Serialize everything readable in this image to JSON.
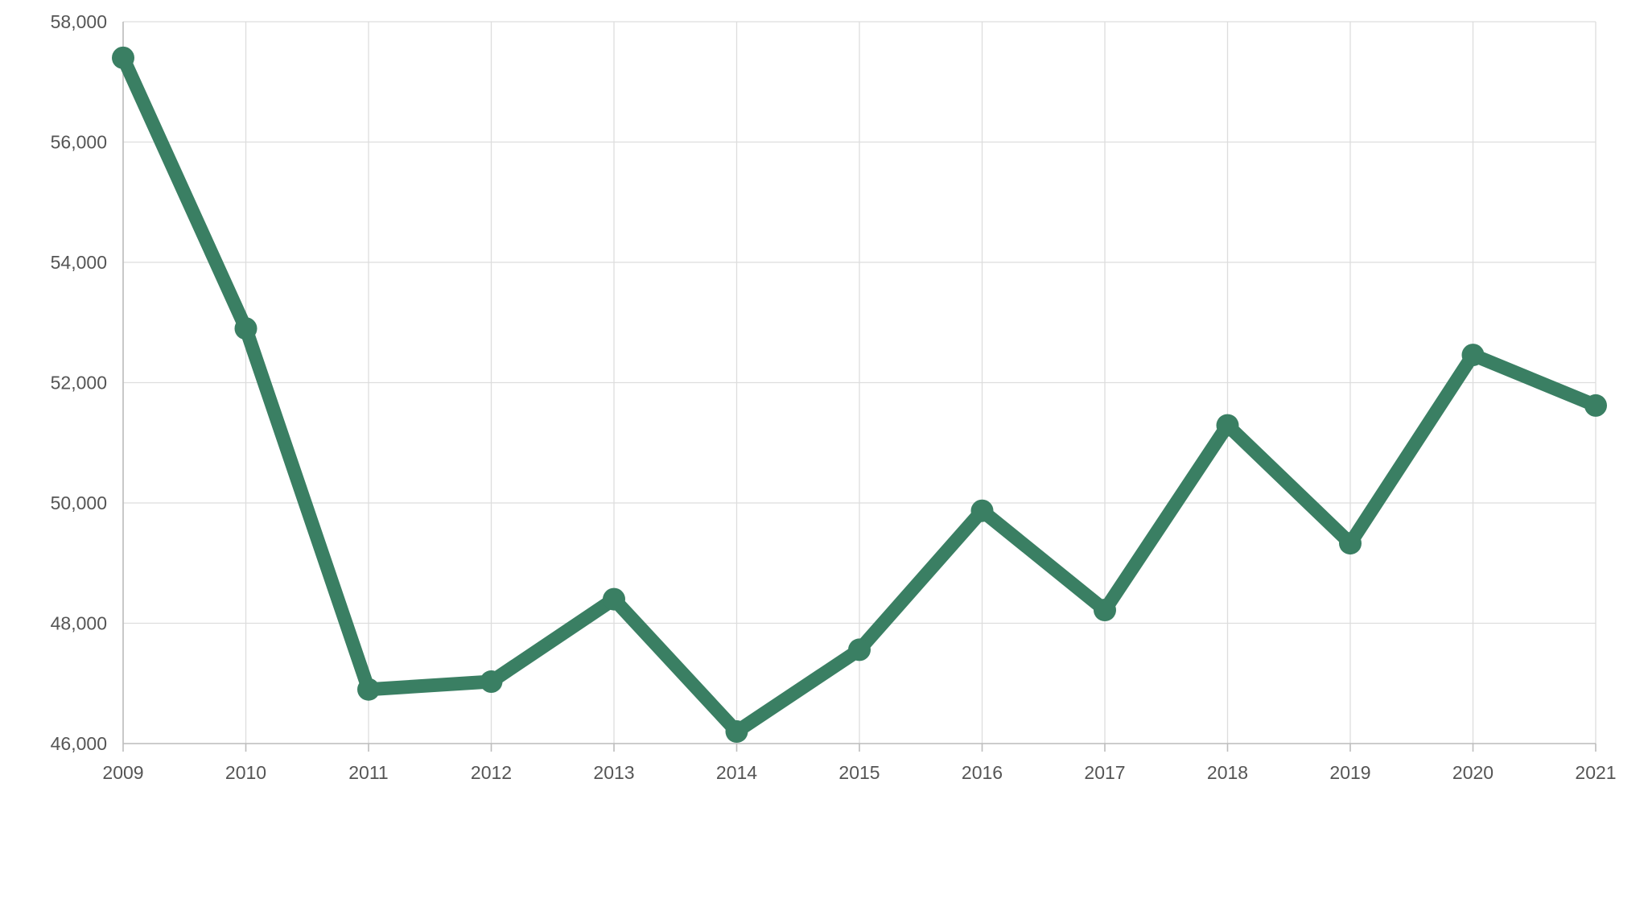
{
  "chart_data": {
    "type": "line",
    "title": "",
    "xlabel": "",
    "ylabel": "",
    "categories": [
      "2009",
      "2010",
      "2011",
      "2012",
      "2013",
      "2014",
      "2015",
      "2016",
      "2017",
      "2018",
      "2019",
      "2020",
      "2021"
    ],
    "series": [
      {
        "values": [
          57400,
          52900,
          46900,
          47030,
          48400,
          46200,
          47560,
          49870,
          48220,
          51290,
          49330,
          52460,
          51620
        ]
      }
    ],
    "ylim": [
      46000,
      58000
    ],
    "yticks": [
      "46,000",
      "48,000",
      "50,000",
      "52,000",
      "54,000",
      "56,000",
      "58,000"
    ],
    "ytick_values": [
      46000,
      48000,
      50000,
      52000,
      54000,
      56000,
      58000
    ],
    "grid": true,
    "legend": "none",
    "colors": {
      "line": "#3a7f63",
      "grid": "#dddddd",
      "axis": "#bdbdbd",
      "tick_text": "#555555"
    }
  }
}
